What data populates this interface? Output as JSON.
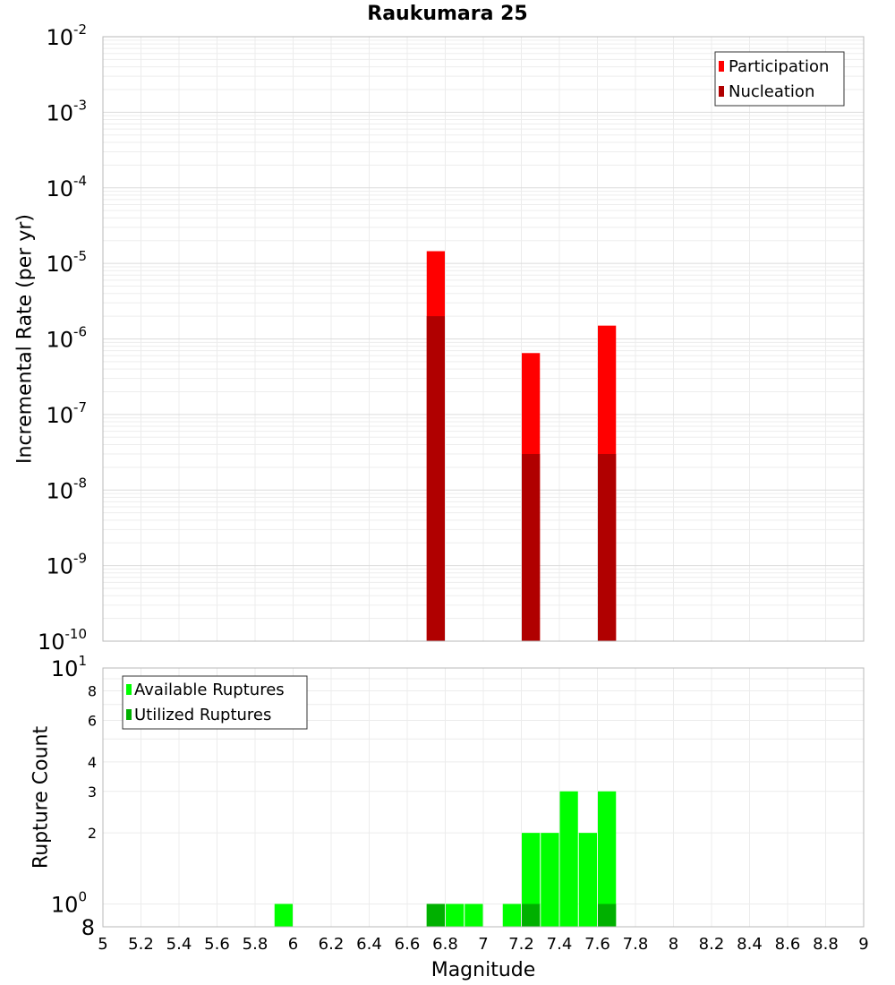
{
  "chart_data": [
    {
      "type": "bar",
      "title": "Raukumara 25",
      "xlabel": "",
      "ylabel": "Incremental Rate (per yr)",
      "xlim": [
        5,
        9
      ],
      "yscale": "log",
      "ylim": [
        1e-10,
        0.01
      ],
      "y_tick_exponents": [
        -10,
        -9,
        -8,
        -7,
        -6,
        -5,
        -4,
        -3,
        -2
      ],
      "bar_width": 0.1,
      "grid": true,
      "legend_position": "top-right",
      "series": [
        {
          "name": "Participation",
          "color": "#ff0000",
          "points": [
            {
              "x": 6.75,
              "y": 1.45e-05
            },
            {
              "x": 7.25,
              "y": 6.5e-07
            },
            {
              "x": 7.65,
              "y": 1.5e-06
            }
          ]
        },
        {
          "name": "Nucleation",
          "color": "#b00000",
          "points": [
            {
              "x": 6.75,
              "y": 2e-06
            },
            {
              "x": 7.25,
              "y": 3e-08
            },
            {
              "x": 7.65,
              "y": 3e-08
            }
          ]
        }
      ]
    },
    {
      "type": "bar",
      "xlabel": "Magnitude",
      "ylabel": "Rupture Count",
      "xlim": [
        5,
        9
      ],
      "x_ticks": [
        "5",
        "5.2",
        "5.4",
        "5.6",
        "5.8",
        "6",
        "6.2",
        "6.4",
        "6.6",
        "6.8",
        "7",
        "7.2",
        "7.4",
        "7.6",
        "7.8",
        "8",
        "8.2",
        "8.4",
        "8.6",
        "8.8",
        "9"
      ],
      "yscale": "log",
      "ylim": [
        0.8,
        10
      ],
      "y_major_ticks": [
        {
          "base": "10",
          "exp": "0",
          "value": 1
        },
        {
          "base": "10",
          "exp": "1",
          "value": 10
        }
      ],
      "y_minor_ticks": [
        {
          "label": "8",
          "value": 0.8
        },
        {
          "label": "2",
          "value": 2
        },
        {
          "label": "3",
          "value": 3
        },
        {
          "label": "4",
          "value": 4
        },
        {
          "label": "6",
          "value": 6
        },
        {
          "label": "8",
          "value": 8
        }
      ],
      "bar_width": 0.1,
      "grid": true,
      "legend_position": "top-left",
      "series": [
        {
          "name": "Available Ruptures",
          "color": "#00ff00",
          "points": [
            {
              "x": 5.95,
              "y": 1
            },
            {
              "x": 6.75,
              "y": 1
            },
            {
              "x": 6.85,
              "y": 1
            },
            {
              "x": 6.95,
              "y": 1
            },
            {
              "x": 7.15,
              "y": 1
            },
            {
              "x": 7.25,
              "y": 2
            },
            {
              "x": 7.35,
              "y": 2
            },
            {
              "x": 7.45,
              "y": 3
            },
            {
              "x": 7.55,
              "y": 2
            },
            {
              "x": 7.65,
              "y": 3
            }
          ]
        },
        {
          "name": "Utilized Ruptures",
          "color": "#00b000",
          "points": [
            {
              "x": 6.75,
              "y": 1
            },
            {
              "x": 7.25,
              "y": 1
            },
            {
              "x": 7.65,
              "y": 1
            }
          ]
        }
      ]
    }
  ]
}
